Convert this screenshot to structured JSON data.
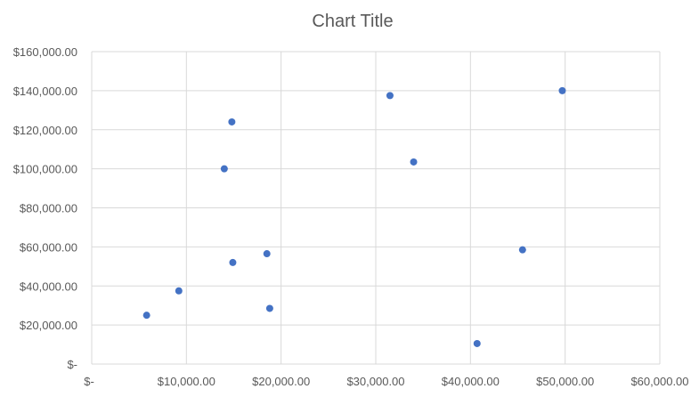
{
  "chart_data": {
    "type": "scatter",
    "title": "Chart Title",
    "xlabel": "",
    "ylabel": "",
    "xlim": [
      0,
      60000
    ],
    "ylim": [
      0,
      160000
    ],
    "grid": true,
    "legend": "none",
    "x_ticks": [
      {
        "value": 0,
        "label": "$-"
      },
      {
        "value": 10000,
        "label": "$10,000.00"
      },
      {
        "value": 20000,
        "label": "$20,000.00"
      },
      {
        "value": 30000,
        "label": "$30,000.00"
      },
      {
        "value": 40000,
        "label": "$40,000.00"
      },
      {
        "value": 50000,
        "label": "$50,000.00"
      },
      {
        "value": 60000,
        "label": "$60,000.00"
      }
    ],
    "y_ticks": [
      {
        "value": 0,
        "label": "$-"
      },
      {
        "value": 20000,
        "label": "$20,000.00"
      },
      {
        "value": 40000,
        "label": "$40,000.00"
      },
      {
        "value": 60000,
        "label": "$60,000.00"
      },
      {
        "value": 80000,
        "label": "$80,000.00"
      },
      {
        "value": 100000,
        "label": "$100,000.00"
      },
      {
        "value": 120000,
        "label": "$120,000.00"
      },
      {
        "value": 140000,
        "label": "$140,000.00"
      },
      {
        "value": 160000,
        "label": "$160,000.00"
      }
    ],
    "series": [
      {
        "color": "#4472c4",
        "points": [
          {
            "x": 5800,
            "y": 25000
          },
          {
            "x": 9200,
            "y": 37500
          },
          {
            "x": 14000,
            "y": 100000
          },
          {
            "x": 14800,
            "y": 124000
          },
          {
            "x": 14900,
            "y": 52000
          },
          {
            "x": 18500,
            "y": 56500
          },
          {
            "x": 18800,
            "y": 28500
          },
          {
            "x": 31500,
            "y": 137500
          },
          {
            "x": 34000,
            "y": 103500
          },
          {
            "x": 40700,
            "y": 10500
          },
          {
            "x": 45500,
            "y": 58500
          },
          {
            "x": 49700,
            "y": 140000
          }
        ]
      }
    ]
  },
  "colors": {
    "grid": "#d9d9d9",
    "text": "#595959",
    "marker": "#4472c4"
  }
}
